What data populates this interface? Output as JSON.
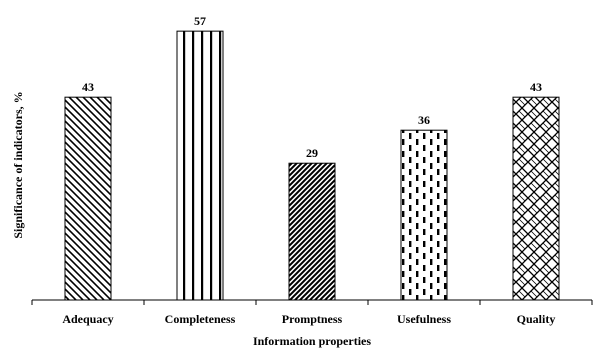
{
  "chart_data": {
    "type": "bar",
    "categories": [
      "Adequacy",
      "Completeness",
      "Promptness",
      "Usefulness",
      "Quality"
    ],
    "values": [
      43,
      57,
      29,
      36,
      43
    ],
    "patterns": [
      "diagonal-back-hatch",
      "vertical-stripes",
      "dense-diagonal-hatch",
      "dashed-vertical",
      "diamond-lattice"
    ],
    "title": "",
    "xlabel": "Information properties",
    "ylabel": "Significance of indicators, %",
    "ylim": [
      0,
      60
    ],
    "grid": false,
    "legend": "none",
    "bar_fill": "#ffffff",
    "pattern_color": "#000000"
  }
}
